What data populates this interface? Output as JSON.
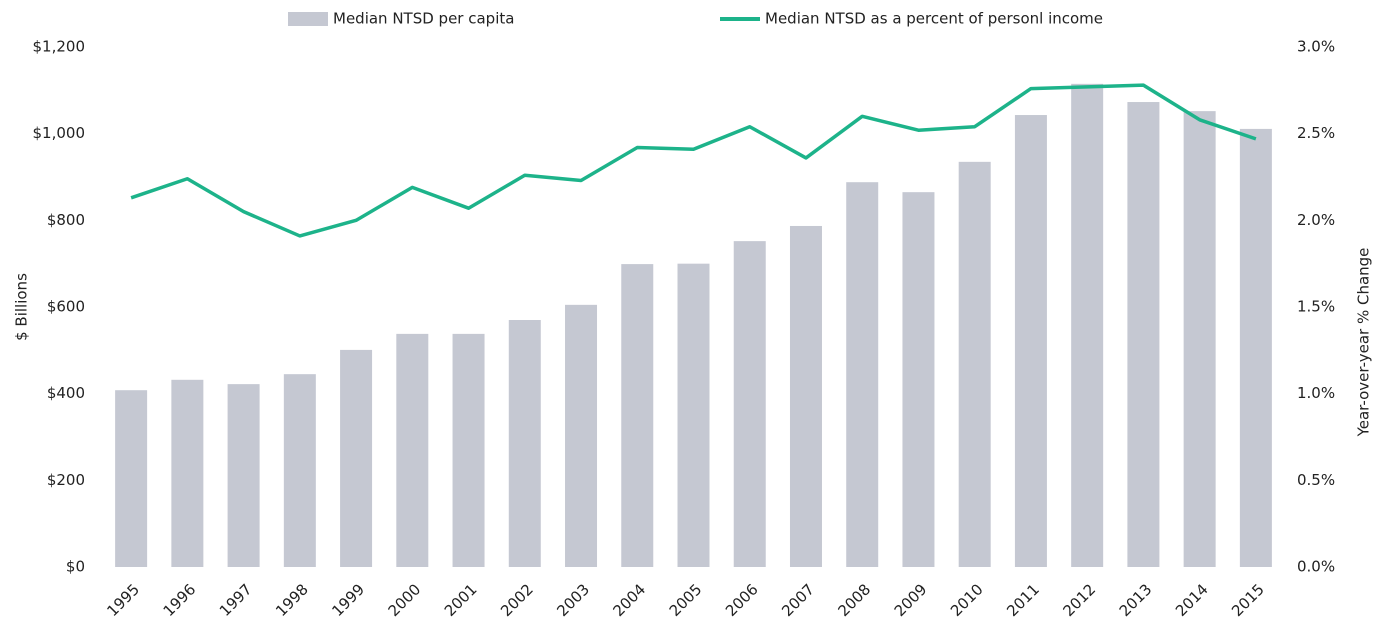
{
  "chart_data": {
    "type": "bar+line",
    "categories": [
      "1995",
      "1996",
      "1997",
      "1998",
      "1999",
      "2000",
      "2001",
      "2002",
      "2003",
      "2004",
      "2005",
      "2006",
      "2007",
      "2008",
      "2009",
      "2010",
      "2011",
      "2012",
      "2013",
      "2014",
      "2015"
    ],
    "series": [
      {
        "name": "Median NTSD per capita",
        "type": "bar",
        "color": "#c5c8d2",
        "axis": "y",
        "values": [
          408,
          432,
          422,
          445,
          501,
          538,
          538,
          570,
          605,
          699,
          700,
          752,
          787,
          888,
          865,
          935,
          1043,
          1115,
          1073,
          1052,
          1011
        ]
      },
      {
        "name": "Median NTSD as a percent of personl income",
        "type": "line",
        "color": "#1db38a",
        "axis": "y2",
        "values": [
          2.13,
          2.24,
          2.05,
          1.91,
          2.0,
          2.19,
          2.07,
          2.26,
          2.23,
          2.42,
          2.41,
          2.54,
          2.36,
          2.6,
          2.52,
          2.54,
          2.76,
          2.77,
          2.78,
          2.58,
          2.47
        ]
      }
    ],
    "ylabel": "$ Billions",
    "y2label": "Year-over-year % Change",
    "ylim": [
      0,
      1200
    ],
    "yticks": [
      {
        "value": 0,
        "label": "$0"
      },
      {
        "value": 200,
        "label": "$200"
      },
      {
        "value": 400,
        "label": "$400"
      },
      {
        "value": 600,
        "label": "$600"
      },
      {
        "value": 800,
        "label": "$800"
      },
      {
        "value": 1000,
        "label": "$1,000"
      },
      {
        "value": 1200,
        "label": "$1,200"
      }
    ],
    "y2lim": [
      0,
      3
    ],
    "y2ticks": [
      {
        "value": 0,
        "label": "0.0%"
      },
      {
        "value": 0.5,
        "label": "0.5%"
      },
      {
        "value": 1,
        "label": "1.0%"
      },
      {
        "value": 1.5,
        "label": "1.5%"
      },
      {
        "value": 2,
        "label": "2.0%"
      },
      {
        "value": 2.5,
        "label": "2.5%"
      },
      {
        "value": 3,
        "label": "3.0%"
      }
    ],
    "grid": false,
    "legend": "top"
  }
}
